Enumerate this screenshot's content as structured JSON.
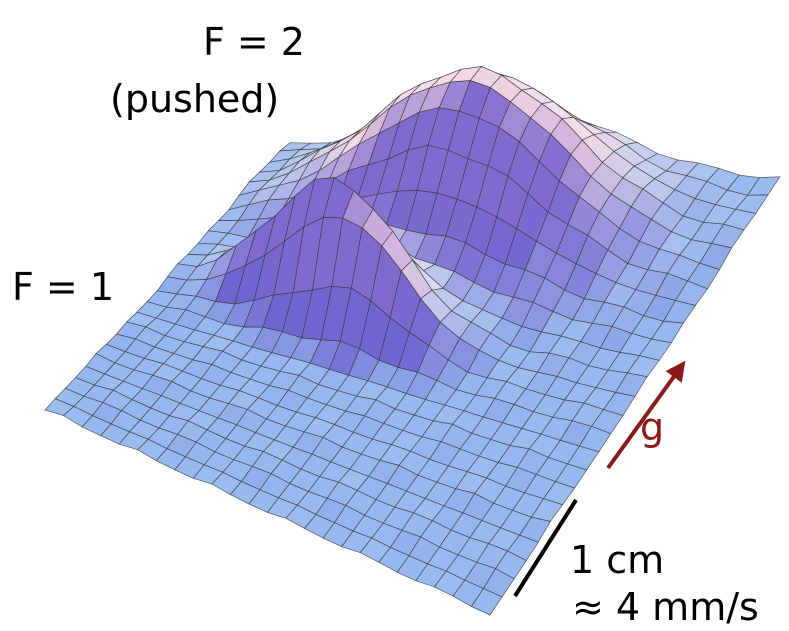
{
  "labels": {
    "f2": "F = 2",
    "f2_note": "(pushed)",
    "f1": "F = 1",
    "gravity": "g",
    "scale_length": "1 cm",
    "scale_velocity": "≈ 4 mm/s"
  }
}
